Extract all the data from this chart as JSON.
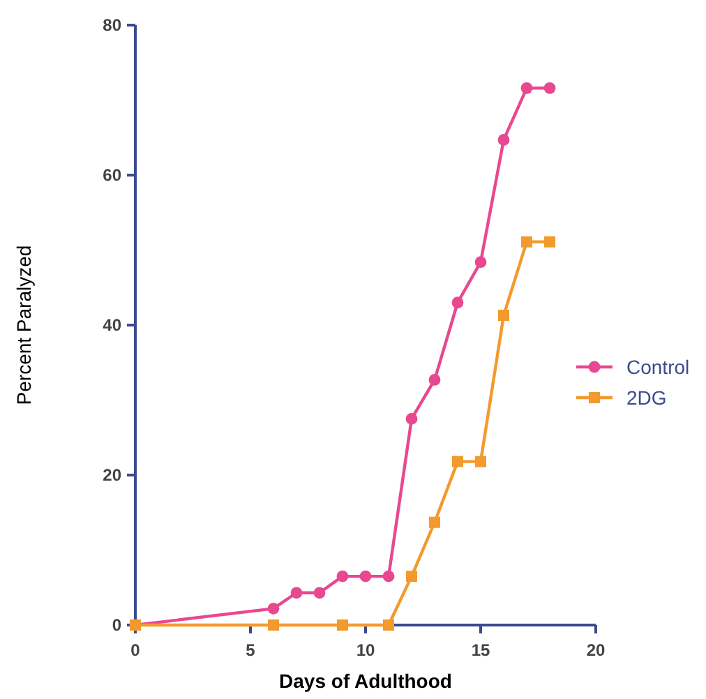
{
  "chart_data": {
    "type": "line",
    "xlabel": "Days of Adulthood",
    "ylabel": "Percent Paralyzed",
    "xlim": [
      0,
      20
    ],
    "xticks": [
      0,
      5,
      10,
      15,
      20
    ],
    "ylim": [
      0,
      80
    ],
    "yticks": [
      0,
      20,
      40,
      60,
      80
    ],
    "grid": false,
    "legend": "right",
    "series": [
      {
        "name": "Control",
        "color": "#e8488f",
        "marker": "circle",
        "x": [
          0,
          6,
          7,
          8,
          9,
          10,
          11,
          12,
          13,
          14,
          15,
          16,
          17,
          18
        ],
        "values": [
          0,
          2.2,
          4.3,
          4.3,
          6.5,
          6.5,
          6.5,
          27.5,
          32.7,
          43,
          48.4,
          64.7,
          71.6,
          71.6
        ]
      },
      {
        "name": "2DG",
        "color": "#f39a2e",
        "marker": "square",
        "x": [
          0,
          6,
          9,
          11,
          12,
          13,
          14,
          15,
          16,
          17,
          18
        ],
        "values": [
          0,
          0,
          0,
          0,
          6.5,
          13.7,
          21.8,
          21.8,
          41.3,
          51.1,
          51.1
        ]
      }
    ]
  }
}
